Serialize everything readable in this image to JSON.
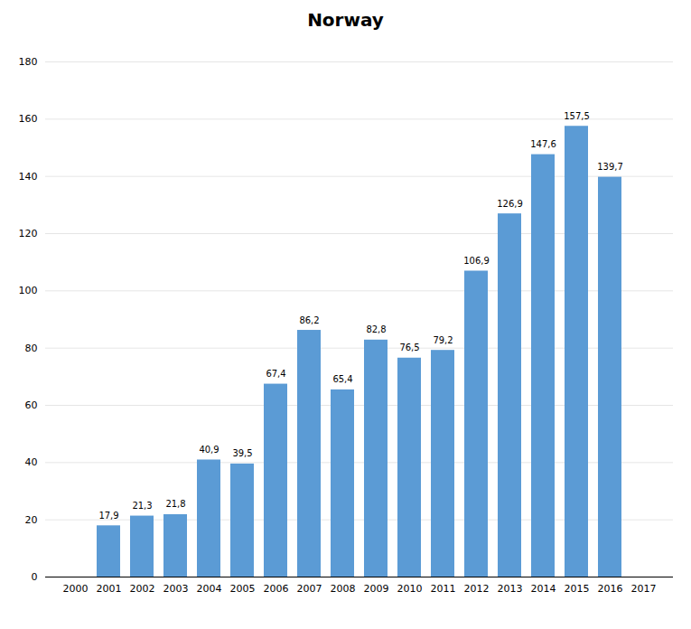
{
  "chart_data": {
    "type": "bar",
    "title": "Norway",
    "categories": [
      "2000",
      "2001",
      "2002",
      "2003",
      "2004",
      "2005",
      "2006",
      "2007",
      "2008",
      "2009",
      "2010",
      "2011",
      "2012",
      "2013",
      "2014",
      "2015",
      "2016",
      "2017"
    ],
    "values": [
      0,
      17.9,
      21.3,
      21.8,
      40.9,
      39.5,
      67.4,
      86.2,
      65.4,
      82.8,
      76.5,
      79.2,
      106.9,
      126.9,
      147.6,
      157.5,
      139.7,
      0
    ],
    "value_labels": [
      null,
      "17,9",
      "21,3",
      "21,8",
      "40,9",
      "39,5",
      "67,4",
      "86,2",
      "65,4",
      "82,8",
      "76,5",
      "79,2",
      "106,9",
      "126,9",
      "147,6",
      "157,5",
      "139,7",
      null
    ],
    "color": "#5B9BD5",
    "ylim": [
      0,
      180
    ],
    "yticks": [
      0,
      20,
      40,
      60,
      80,
      100,
      120,
      140,
      160,
      180
    ],
    "grid": true,
    "data_labels": true
  }
}
